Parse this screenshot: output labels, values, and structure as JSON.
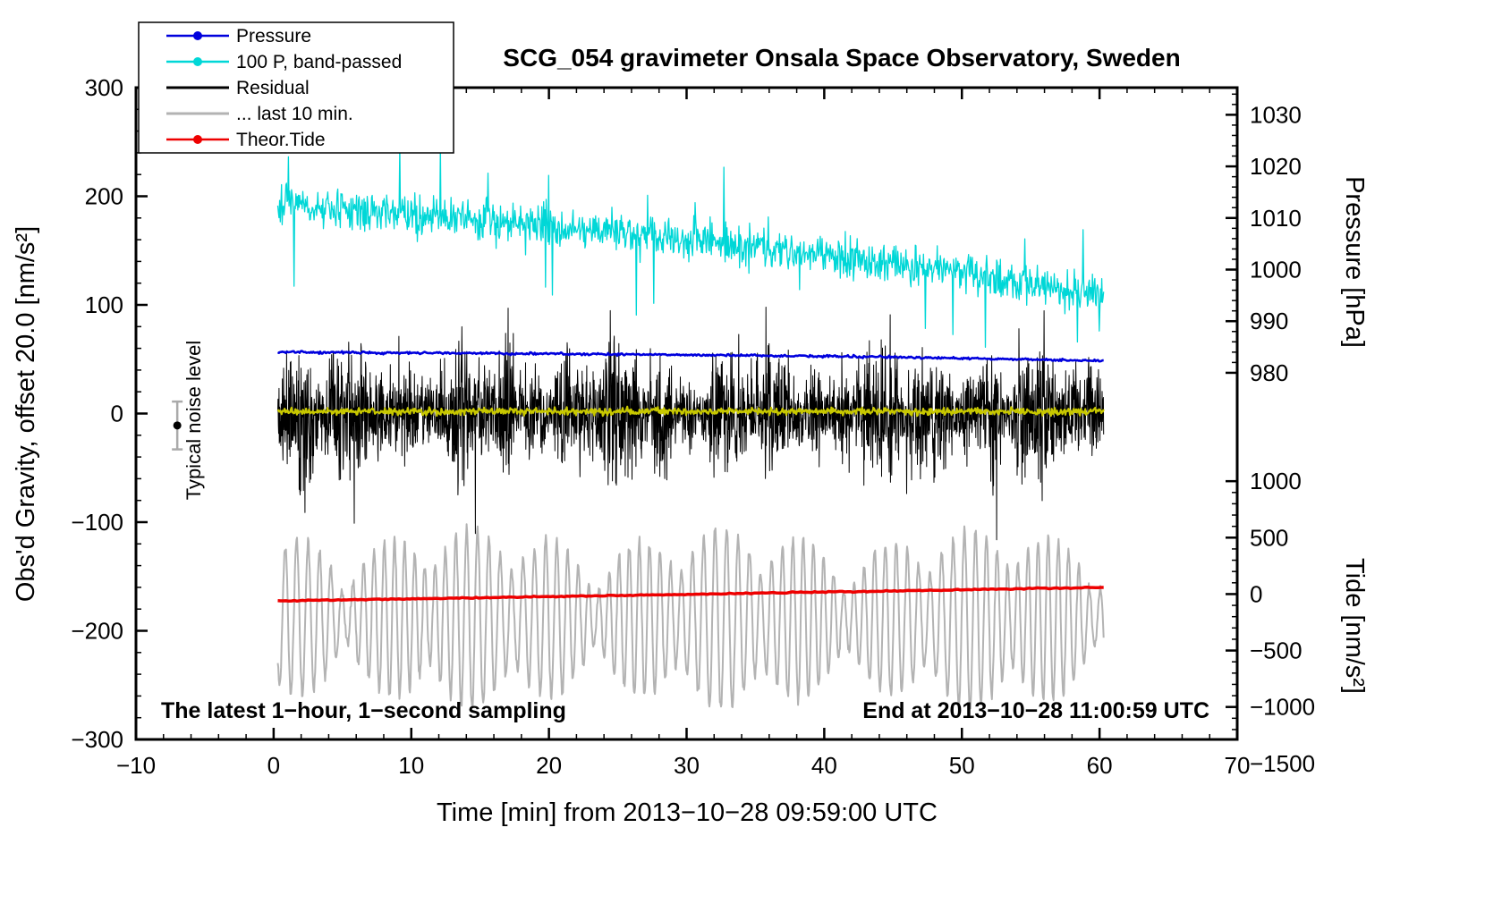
{
  "chart_data": {
    "type": "line",
    "title": "SCG_054 gravimeter Onsala Space Observatory, Sweden",
    "x_axis": {
      "label": "Time [min] from 2013−10−28 09:59:00 UTC",
      "min": -10,
      "max": 70,
      "major_step": 10,
      "minor_step": 2,
      "tick_labels": [
        "−10",
        "0",
        "10",
        "20",
        "30",
        "40",
        "50",
        "60",
        "70"
      ]
    },
    "y_left": {
      "label": "Obs'd Gravity, offset 20.0 [nm/s²]",
      "min": -300,
      "max": 300,
      "major_step": 100,
      "minor_step": 20,
      "tick_labels": [
        "−300",
        "−200",
        "−100",
        "0",
        "100",
        "200",
        "300"
      ]
    },
    "y_right_pressure": {
      "label": "Pressure [hPa]",
      "ticks": [
        1030,
        1020,
        1010,
        1000,
        990,
        980
      ],
      "minor_step": 2,
      "min": 980,
      "max": 1034,
      "ref_value": 980,
      "ref_grav": 37.5,
      "grav_per_unit": 4.75
    },
    "y_right_tide": {
      "label": "Tide [nm/s²]",
      "ticks": [
        1000,
        500,
        0,
        -500,
        -1000,
        -1500
      ],
      "minor_step": 100,
      "min": -1500,
      "max": 1000,
      "ref_value": 0,
      "ref_grav": -166.2,
      "grav_per_unit": 0.10392
    },
    "annotations": {
      "sampling": "The latest 1−hour, 1−second sampling",
      "end_time": "End at 2013−10−28 11:00:59 UTC",
      "noise_label": "Typical noise level"
    },
    "noise_bar": {
      "x": -7,
      "y": -11,
      "half": 22
    },
    "legend": [
      {
        "label": "Pressure",
        "color": "#0000dd",
        "marker": true
      },
      {
        "label": "100 P, band-passed",
        "color": "#00d7d7",
        "marker": true
      },
      {
        "label": "Residual",
        "color": "#000000",
        "marker": false
      },
      {
        "label": "... last 10 min.",
        "color": "#b3b3b3",
        "marker": false
      },
      {
        "label": "Theor.Tide",
        "color": "#ee0000",
        "marker": true
      }
    ],
    "series": [
      {
        "name": "... last 10 min.",
        "color": "#b3b3b3",
        "width": 2,
        "points_per_min": 25,
        "axis": "left",
        "trend": [
          [
            0.3,
            -188
          ],
          [
            60.3,
            -190
          ]
        ],
        "noise": {
          "type": "osc",
          "amp": 62,
          "period": 0.78,
          "amp_var": 0.75,
          "seed": 13
        }
      },
      {
        "name": "100 P, band-passed",
        "color": "#00d7d7",
        "width": 1.3,
        "points_per_min": 22,
        "axis": "left",
        "trend": [
          [
            0.3,
            190
          ],
          [
            5,
            187
          ],
          [
            10,
            183
          ],
          [
            15,
            180
          ],
          [
            20,
            173
          ],
          [
            25,
            167
          ],
          [
            30,
            160
          ],
          [
            35,
            154
          ],
          [
            40,
            147
          ],
          [
            45,
            138
          ],
          [
            48,
            133
          ],
          [
            52,
            127
          ],
          [
            56,
            117
          ],
          [
            60.3,
            107
          ]
        ],
        "noise": {
          "type": "spiky",
          "amp": 9,
          "spike_amp": 38,
          "spike_prob": 0.025,
          "seed": 7
        }
      },
      {
        "name": "Residual",
        "color": "#000000",
        "width": 1,
        "points_per_min": 45,
        "axis": "left",
        "trend": [
          [
            0.3,
            0
          ],
          [
            60.3,
            0
          ]
        ],
        "noise": {
          "type": "burst",
          "amp": 17,
          "burst_amp": 55,
          "burst_prob": 0.012,
          "seed": 11
        }
      },
      {
        "name": "Residual smoothed",
        "color": "#c8c800",
        "width": 2.2,
        "points_per_min": 18,
        "axis": "left",
        "trend": [
          [
            0.3,
            2
          ],
          [
            60.3,
            2
          ]
        ],
        "noise": {
          "type": "white",
          "amp": 1.6,
          "seed": 5
        }
      },
      {
        "name": "Pressure",
        "color": "#0000dd",
        "width": 2.6,
        "points_per_min": 12,
        "axis": "left",
        "trend": [
          [
            0.3,
            56.5
          ],
          [
            15,
            55.5
          ],
          [
            30,
            54
          ],
          [
            45,
            52
          ],
          [
            60.3,
            48.5
          ]
        ],
        "noise": {
          "type": "white",
          "amp": 0.5,
          "seed": 3
        }
      },
      {
        "name": "Theor.Tide",
        "color": "#ee0000",
        "width": 3.5,
        "points_per_min": 5,
        "axis": "left",
        "trend": [
          [
            0.3,
            -172.5
          ],
          [
            30,
            -166.5
          ],
          [
            60.3,
            -160
          ]
        ],
        "noise": {
          "type": "white",
          "amp": 0.25,
          "seed": 2
        }
      }
    ]
  }
}
